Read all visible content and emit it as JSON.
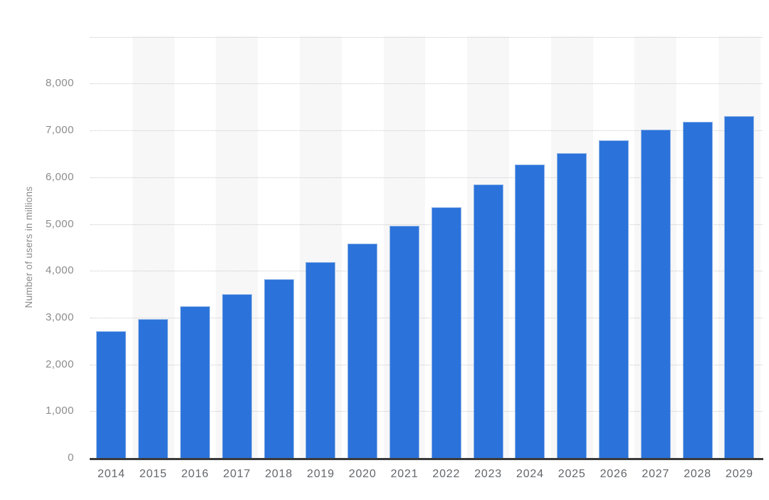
{
  "chart_data": {
    "type": "bar",
    "categories": [
      "2014",
      "2015",
      "2016",
      "2017",
      "2018",
      "2019",
      "2020",
      "2021",
      "2022",
      "2023",
      "2024",
      "2025",
      "2026",
      "2027",
      "2028",
      "2029"
    ],
    "values": [
      2713,
      2963,
      3240,
      3505,
      3822,
      4189,
      4585,
      4961,
      5354,
      5838,
      6266,
      6517,
      6785,
      7014,
      7181,
      7308
    ],
    "xlabel": "",
    "ylabel": "Number of users in millions",
    "ylim": [
      0,
      9000
    ],
    "ytick_interval": 1000,
    "ytick_labels": [
      "0",
      "1,000",
      "2,000",
      "3,000",
      "4,000",
      "5,000",
      "6,000",
      "7,000",
      "8,000"
    ],
    "grid": "horizontal-dotted",
    "legend": "none",
    "band_pattern": "alternating columns shaded starting at second category",
    "colors": {
      "bar": "#2b73da",
      "bar_border": "#8fb4e9",
      "band": "#f7f7f7",
      "gridline": "#c9c9c9",
      "axis_line": "#3a3a3a",
      "ytick_label": "#8c8c8c",
      "xtick_label": "#63666a",
      "background": "#ffffff"
    }
  }
}
